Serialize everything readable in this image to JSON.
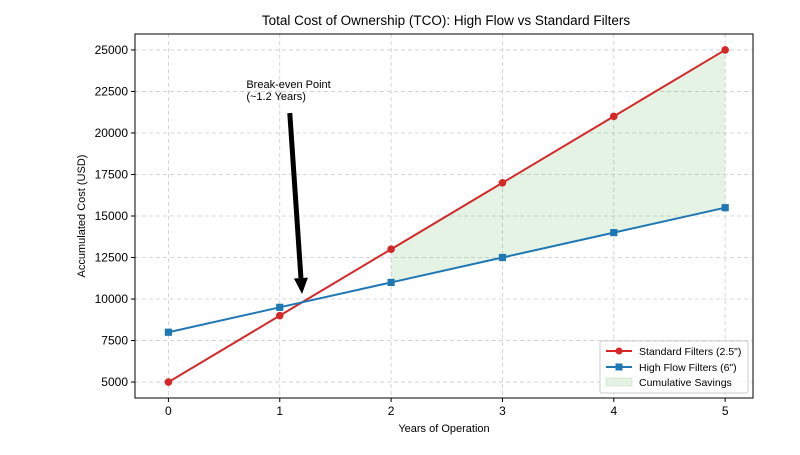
{
  "chart_data": {
    "type": "line",
    "title": "Total Cost of Ownership (TCO): High Flow vs Standard Filters",
    "xlabel": "Years of Operation",
    "ylabel": "Accumulated Cost (USD)",
    "x": [
      0,
      1,
      2,
      3,
      4,
      5
    ],
    "xlim": [
      -0.3,
      5.25
    ],
    "ylim": [
      4040,
      25960
    ],
    "xticks": [
      0,
      1,
      2,
      3,
      4,
      5
    ],
    "yticks": [
      5000,
      7500,
      10000,
      12500,
      15000,
      17500,
      20000,
      22500,
      25000
    ],
    "grid": true,
    "legend_position": "bottom-right",
    "series": [
      {
        "name": "Standard Filters (2.5\")",
        "values": [
          5000,
          9000,
          13000,
          17000,
          21000,
          25000
        ],
        "color": "#d62728",
        "marker": "circle"
      },
      {
        "name": "High Flow Filters (6\")",
        "values": [
          8000,
          9500,
          11000,
          12500,
          14000,
          15500
        ],
        "color": "#1f77b4",
        "marker": "square"
      }
    ],
    "fill": {
      "name": "Cumulative Savings",
      "x_from": 2,
      "x_to": 5,
      "color": "#2ca02c",
      "opacity": 0.12
    },
    "annotation": {
      "text_lines": [
        "Break-even Point",
        "(~1.2 Years)"
      ],
      "text_xy": [
        0.7,
        22700
      ],
      "arrow_from": [
        1.09,
        21200
      ],
      "arrow_to": [
        1.2,
        10300
      ]
    }
  }
}
